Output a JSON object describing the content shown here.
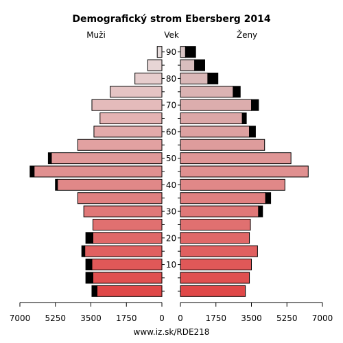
{
  "chart_data": {
    "type": "bar",
    "title": "Demografický strom Ebersberg 2014",
    "left_label": "Muži",
    "center_label": "Vek",
    "right_label": "Ženy",
    "footer": "www.iz.sk/RDE218",
    "age_groups": [
      "0-4",
      "5-9",
      "10-14",
      "15-19",
      "20-24",
      "25-29",
      "30-34",
      "35-39",
      "40-44",
      "45-49",
      "50-54",
      "55-59",
      "60-64",
      "65-69",
      "70-74",
      "75-79",
      "80-84",
      "85-89",
      "90+"
    ],
    "y_tick_labels": [
      "10",
      "20",
      "30",
      "40",
      "50",
      "60",
      "70",
      "80",
      "90"
    ],
    "x_tick_labels_left": [
      "7000",
      "5250",
      "3500",
      "1750",
      "0"
    ],
    "x_tick_labels_right": [
      "0",
      "1750",
      "3500",
      "5250",
      "7000"
    ],
    "xlim": [
      0,
      7000
    ],
    "series": [
      {
        "name": "Muži",
        "values": [
          3200,
          3400,
          3450,
          3800,
          3400,
          3400,
          3850,
          4150,
          5150,
          6300,
          5450,
          4150,
          3350,
          3050,
          3450,
          2550,
          1330,
          700,
          230
        ],
        "excess": [
          250,
          350,
          300,
          150,
          350,
          0,
          0,
          0,
          100,
          200,
          150,
          0,
          0,
          0,
          0,
          0,
          0,
          0,
          0
        ]
      },
      {
        "name": "Ženy",
        "values": [
          3200,
          3400,
          3500,
          3800,
          3400,
          3450,
          3850,
          4200,
          5150,
          6300,
          5450,
          4150,
          3400,
          3050,
          3500,
          2600,
          1350,
          700,
          250
        ],
        "excess": [
          0,
          0,
          0,
          0,
          0,
          0,
          200,
          250,
          0,
          0,
          0,
          0,
          300,
          200,
          350,
          350,
          500,
          500,
          500
        ]
      }
    ],
    "colors": {
      "excess": "#000000",
      "young": "#e04848",
      "mid": "#e09090",
      "old": "#e8dede",
      "female_old": "#d8c4c4"
    },
    "grid": false
  }
}
